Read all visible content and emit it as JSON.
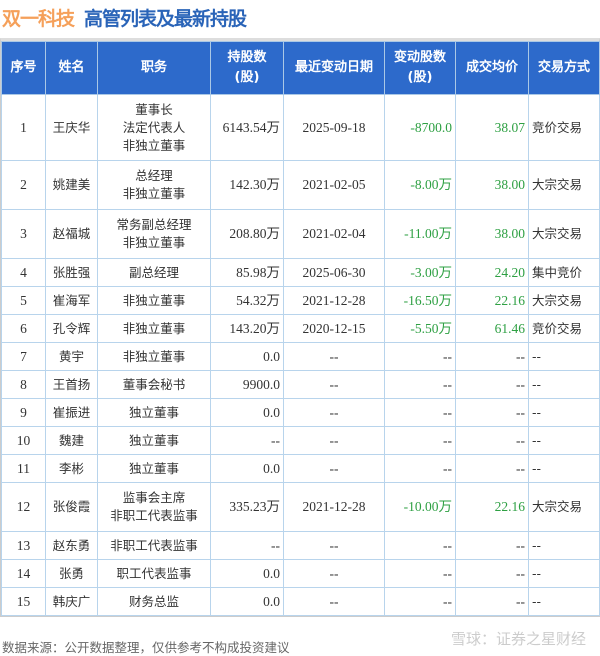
{
  "title": {
    "company": "双一科技",
    "subtitle": "高管列表及最新持股"
  },
  "colors": {
    "header": "#2d6acb",
    "negative": "#2ea043",
    "company": "#f5a05a"
  },
  "headers": [
    "序号",
    "姓名",
    "职务",
    "持股数\n(股)",
    "最近变动日期",
    "变动股数\n(股)",
    "成交均价",
    "交易方式"
  ],
  "rows": [
    {
      "no": "1",
      "name": "王庆华",
      "role": "董事长\n法定代表人\n非独立董事",
      "shares": "6143.54万",
      "date": "2025-09-18",
      "change": "-8700.0",
      "price": "38.07",
      "method": "竞价交易"
    },
    {
      "no": "2",
      "name": "姚建美",
      "role": "总经理\n非独立董事",
      "shares": "142.30万",
      "date": "2021-02-05",
      "change": "-8.00万",
      "price": "38.00",
      "method": "大宗交易"
    },
    {
      "no": "3",
      "name": "赵福城",
      "role": "常务副总经理\n非独立董事",
      "shares": "208.80万",
      "date": "2021-02-04",
      "change": "-11.00万",
      "price": "38.00",
      "method": "大宗交易"
    },
    {
      "no": "4",
      "name": "张胜强",
      "role": "副总经理",
      "shares": "85.98万",
      "date": "2025-06-30",
      "change": "-3.00万",
      "price": "24.20",
      "method": "集中竞价"
    },
    {
      "no": "5",
      "name": "崔海军",
      "role": "非独立董事",
      "shares": "54.32万",
      "date": "2021-12-28",
      "change": "-16.50万",
      "price": "22.16",
      "method": "大宗交易"
    },
    {
      "no": "6",
      "name": "孔令辉",
      "role": "非独立董事",
      "shares": "143.20万",
      "date": "2020-12-15",
      "change": "-5.50万",
      "price": "61.46",
      "method": "竞价交易"
    },
    {
      "no": "7",
      "name": "黄宇",
      "role": "非独立董事",
      "shares": "0.0",
      "date": "--",
      "change": "--",
      "price": "--",
      "method": "--"
    },
    {
      "no": "8",
      "name": "王首扬",
      "role": "董事会秘书",
      "shares": "9900.0",
      "date": "--",
      "change": "--",
      "price": "--",
      "method": "--"
    },
    {
      "no": "9",
      "name": "崔振进",
      "role": "独立董事",
      "shares": "0.0",
      "date": "--",
      "change": "--",
      "price": "--",
      "method": "--"
    },
    {
      "no": "10",
      "name": "魏建",
      "role": "独立董事",
      "shares": "--",
      "date": "--",
      "change": "--",
      "price": "--",
      "method": "--"
    },
    {
      "no": "11",
      "name": "李彬",
      "role": "独立董事",
      "shares": "0.0",
      "date": "--",
      "change": "--",
      "price": "--",
      "method": "--"
    },
    {
      "no": "12",
      "name": "张俊霞",
      "role": "监事会主席\n非职工代表监事",
      "shares": "335.23万",
      "date": "2021-12-28",
      "change": "-10.00万",
      "price": "22.16",
      "method": "大宗交易"
    },
    {
      "no": "13",
      "name": "赵东勇",
      "role": "非职工代表监事",
      "shares": "--",
      "date": "--",
      "change": "--",
      "price": "--",
      "method": "--"
    },
    {
      "no": "14",
      "name": "张勇",
      "role": "职工代表监事",
      "shares": "0.0",
      "date": "--",
      "change": "--",
      "price": "--",
      "method": "--"
    },
    {
      "no": "15",
      "name": "韩庆广",
      "role": "财务总监",
      "shares": "0.0",
      "date": "--",
      "change": "--",
      "price": "--",
      "method": "--"
    }
  ],
  "footer": {
    "source": "数据来源：公开数据整理，仅供参考不构成投资建议",
    "watermark": "雪球：证券之星财经"
  }
}
